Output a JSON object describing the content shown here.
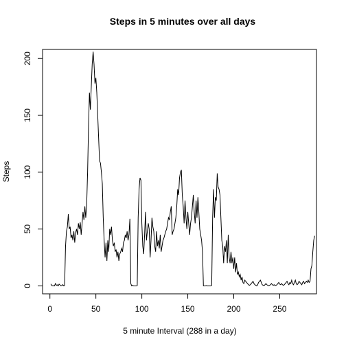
{
  "chart_data": {
    "type": "line",
    "title": "Steps in 5 minutes over all days",
    "x_label": "5 minute Interval (288 in a day)",
    "y_label": "Steps",
    "color": "#000000",
    "xlim": [
      -8,
      290
    ],
    "ylim": [
      -7,
      208
    ],
    "xticks": [
      0,
      50,
      100,
      150,
      200,
      250
    ],
    "yticks": [
      0,
      50,
      100,
      150,
      200
    ],
    "x": [
      1,
      2,
      3,
      4,
      5,
      6,
      7,
      8,
      9,
      10,
      11,
      12,
      13,
      14,
      15,
      16,
      17,
      18,
      19,
      20,
      21,
      22,
      23,
      24,
      25,
      26,
      27,
      28,
      29,
      30,
      31,
      32,
      33,
      34,
      35,
      36,
      37,
      38,
      39,
      40,
      41,
      42,
      43,
      44,
      45,
      46,
      47,
      48,
      49,
      50,
      51,
      52,
      53,
      54,
      55,
      56,
      57,
      58,
      59,
      60,
      61,
      62,
      63,
      64,
      65,
      66,
      67,
      68,
      69,
      70,
      71,
      72,
      73,
      74,
      75,
      76,
      77,
      78,
      79,
      80,
      81,
      82,
      83,
      84,
      85,
      86,
      87,
      88,
      89,
      90,
      91,
      92,
      93,
      94,
      95,
      96,
      97,
      98,
      99,
      100,
      101,
      102,
      103,
      104,
      105,
      106,
      107,
      108,
      109,
      110,
      111,
      112,
      113,
      114,
      115,
      116,
      117,
      118,
      119,
      120,
      121,
      122,
      123,
      124,
      125,
      126,
      127,
      128,
      129,
      130,
      131,
      132,
      133,
      134,
      135,
      136,
      137,
      138,
      139,
      140,
      141,
      142,
      143,
      144,
      145,
      146,
      147,
      148,
      149,
      150,
      151,
      152,
      153,
      154,
      155,
      156,
      157,
      158,
      159,
      160,
      161,
      162,
      163,
      164,
      165,
      166,
      167,
      168,
      169,
      170,
      171,
      172,
      173,
      174,
      175,
      176,
      177,
      178,
      179,
      180,
      181,
      182,
      183,
      184,
      185,
      186,
      187,
      188,
      189,
      190,
      191,
      192,
      193,
      194,
      195,
      196,
      197,
      198,
      199,
      200,
      201,
      202,
      203,
      204,
      205,
      206,
      207,
      208,
      209,
      210,
      211,
      212,
      213,
      214,
      215,
      216,
      217,
      218,
      219,
      220,
      221,
      222,
      223,
      224,
      225,
      226,
      227,
      228,
      229,
      230,
      231,
      232,
      233,
      234,
      235,
      236,
      237,
      238,
      239,
      240,
      241,
      242,
      243,
      244,
      245,
      246,
      247,
      248,
      249,
      250,
      251,
      252,
      253,
      254,
      255,
      256,
      257,
      258,
      259,
      260,
      261,
      262,
      263,
      264,
      265,
      266,
      267,
      268,
      269,
      270,
      271,
      272,
      273,
      274,
      275,
      276,
      277,
      278,
      279,
      280,
      281,
      282,
      283,
      284,
      285,
      286,
      287,
      288
    ],
    "values": [
      1.7,
      0.3,
      0.1,
      0.2,
      0,
      2.1,
      0.5,
      0.9,
      0,
      1.5,
      0.8,
      0.1,
      0.3,
      1.1,
      0,
      0.4,
      35,
      48,
      52,
      63,
      50,
      52,
      42,
      45,
      40,
      48,
      38,
      47,
      50,
      45,
      55,
      50,
      56,
      45,
      55,
      65,
      58,
      70,
      60,
      72,
      100,
      140,
      170,
      155,
      175,
      195,
      206,
      195,
      178,
      183,
      170,
      150,
      130,
      110,
      108,
      100,
      90,
      60,
      40,
      25,
      38,
      22,
      40,
      30,
      50,
      45,
      52,
      40,
      35,
      38,
      30,
      32,
      25,
      30,
      22,
      28,
      30,
      33,
      30,
      38,
      40,
      45,
      42,
      48,
      40,
      45,
      59,
      2,
      0,
      0.5,
      0,
      0,
      0,
      0,
      0.3,
      60,
      85,
      95,
      93,
      55,
      35,
      28,
      45,
      65,
      40,
      48,
      55,
      50,
      25,
      40,
      60,
      52,
      48,
      35,
      30,
      48,
      35,
      40,
      33,
      45,
      30,
      35,
      40,
      42,
      45,
      48,
      50,
      55,
      60,
      58,
      65,
      70,
      45,
      48,
      50,
      55,
      60,
      70,
      85,
      80,
      95,
      100,
      102,
      80,
      70,
      55,
      75,
      60,
      50,
      65,
      55,
      45,
      55,
      60,
      70,
      80,
      65,
      55,
      75,
      60,
      78,
      65,
      50,
      45,
      40,
      30,
      0,
      0,
      0,
      0.3,
      0,
      0,
      0,
      0,
      0,
      0.5,
      60,
      85,
      60,
      78,
      75,
      99,
      87,
      85,
      80,
      60,
      40,
      35,
      20,
      35,
      30,
      40,
      20,
      45,
      25,
      20,
      30,
      20,
      25,
      15,
      25,
      12,
      20,
      10,
      12,
      8,
      10,
      5,
      8,
      3,
      2,
      5,
      4,
      3,
      2,
      1,
      0.5,
      1,
      2,
      3,
      4,
      2,
      1,
      0.5,
      0,
      1,
      3,
      4,
      5,
      3,
      1,
      0.5,
      0.3,
      1,
      2,
      1,
      0.5,
      0.2,
      0.5,
      1,
      2,
      1,
      0.5,
      1,
      0.3,
      0.5,
      1,
      2,
      3,
      1.5,
      1,
      2,
      1,
      0.5,
      1,
      2,
      3,
      4,
      2,
      1,
      3,
      2,
      5,
      2,
      1,
      3,
      5,
      2,
      1,
      2,
      4,
      3,
      2,
      1,
      3,
      4,
      2,
      3,
      4,
      3,
      5,
      3,
      4,
      15,
      18,
      30,
      40,
      44
    ]
  }
}
